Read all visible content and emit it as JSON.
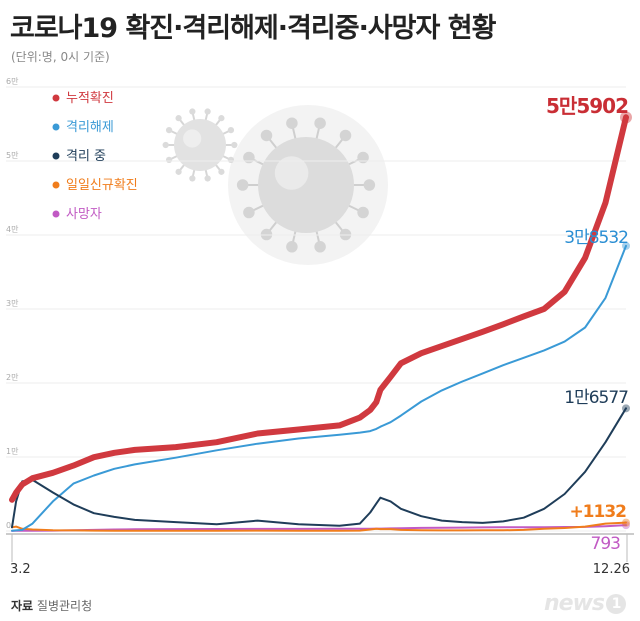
{
  "header": {
    "title": "코로나19 확진·격리해제·격리중·사망자 현황",
    "subtitle": "(단위:명, 0시 기준)"
  },
  "footer": {
    "source_label": "자료",
    "source": "질병관리청",
    "logo": "news",
    "logo_mark": "1"
  },
  "chart_data": {
    "type": "line",
    "x_start": "3.2",
    "x_end": "12.26",
    "ylim": [
      0,
      60000
    ],
    "yticks": [
      "0",
      "1만",
      "2만",
      "3만",
      "4만",
      "5만",
      "6만"
    ],
    "legend_position": "top-left",
    "x": [
      0,
      2,
      5,
      10,
      20,
      30,
      40,
      50,
      60,
      80,
      100,
      120,
      140,
      160,
      170,
      175,
      178,
      180,
      185,
      190,
      200,
      210,
      220,
      230,
      240,
      250,
      260,
      270,
      280,
      290,
      300
    ],
    "series": [
      {
        "name": "누적확진",
        "color": "#d0393f",
        "values": [
          4212,
          5186,
          6284,
          7134,
          7869,
          8842,
          9976,
          10561,
          10962,
          11344,
          12003,
          13181,
          13711,
          14269,
          15318,
          16346,
          17399,
          19077,
          20842,
          22657,
          24027,
          24988,
          25955,
          26925,
          27932,
          29003,
          30017,
          32318,
          36915,
          44363,
          55902
        ]
      },
      {
        "name": "격리해제",
        "color": "#3a9ad6",
        "values": [
          30,
          80,
          150,
          1000,
          4000,
          6400,
          7500,
          8400,
          9000,
          9900,
          10900,
          11800,
          12500,
          13000,
          13300,
          13500,
          13800,
          14100,
          14700,
          15600,
          17500,
          19000,
          20200,
          21300,
          22400,
          23400,
          24400,
          25600,
          27500,
          31500,
          38532
        ]
      },
      {
        "name": "격리 중",
        "color": "#1f3d59",
        "values": [
          500,
          4000,
          6700,
          6900,
          5200,
          3600,
          2400,
          1900,
          1500,
          1200,
          900,
          1400,
          900,
          700,
          1000,
          2500,
          3700,
          4500,
          4000,
          3000,
          2000,
          1400,
          1200,
          1100,
          1300,
          1800,
          3000,
          5000,
          8000,
          12000,
          16577
        ]
      },
      {
        "name": "일일신규확진",
        "color": "#f07d1c",
        "values": [
          500,
          600,
          300,
          200,
          100,
          80,
          60,
          40,
          30,
          40,
          30,
          50,
          40,
          30,
          50,
          200,
          300,
          250,
          250,
          150,
          100,
          80,
          80,
          100,
          100,
          150,
          300,
          400,
          600,
          1000,
          1132
        ]
      },
      {
        "name": "사망자",
        "color": "#c15ac4",
        "values": [
          20,
          25,
          30,
          40,
          60,
          90,
          150,
          200,
          230,
          250,
          270,
          280,
          290,
          300,
          305,
          310,
          320,
          330,
          350,
          380,
          420,
          440,
          460,
          480,
          500,
          510,
          520,
          540,
          560,
          650,
          793
        ]
      }
    ],
    "end_labels": [
      {
        "text": "5만5902",
        "color": "#c92e35"
      },
      {
        "text": "3만8532",
        "color": "#2a8ed3"
      },
      {
        "text": "1만6577",
        "color": "#1f3d59"
      },
      {
        "text": "+1132",
        "color": "#f07d1c"
      },
      {
        "text": "793",
        "color": "#c15ac4"
      }
    ]
  }
}
